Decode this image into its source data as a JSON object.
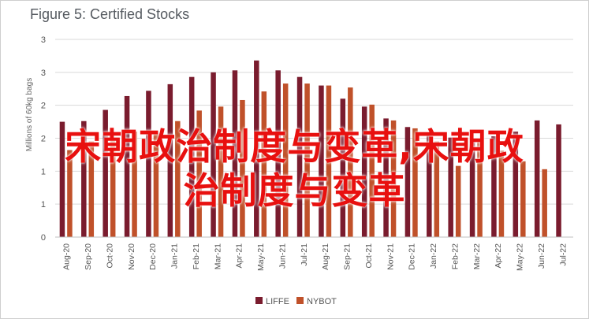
{
  "chart_data": {
    "type": "bar",
    "title": "Figure 5: Certified Stocks",
    "ylabel": "Millions of 60kg bags",
    "xlabel": "",
    "ylim": [
      0,
      3
    ],
    "y_tick_labels": [
      "0",
      "1",
      "1",
      "2",
      "2",
      "3",
      "3"
    ],
    "y_tick_values": [
      0,
      0.5,
      1,
      1.5,
      2,
      2.5,
      3
    ],
    "grid": true,
    "legend_position": "bottom",
    "categories": [
      "Aug-20",
      "Sep-20",
      "Oct-20",
      "Nov-20",
      "Dec-20",
      "Jan-21",
      "Feb-21",
      "Mar-21",
      "Apr-21",
      "May-21",
      "Jun-21",
      "Jul-21",
      "Aug-21",
      "Sep-21",
      "Oct-21",
      "Nov-21",
      "Dec-21",
      "Jan-22",
      "Feb-22",
      "Mar-22",
      "Apr-22",
      "May-22",
      "Jun-22",
      "Jul-22"
    ],
    "series": [
      {
        "name": "LIFFE",
        "color": "#7a1c2e",
        "values": [
          1.75,
          1.76,
          1.93,
          2.14,
          2.22,
          2.32,
          2.43,
          2.5,
          2.53,
          2.68,
          2.53,
          2.43,
          2.3,
          2.1,
          1.98,
          1.8,
          1.67,
          1.58,
          1.51,
          1.49,
          1.53,
          1.6,
          1.77,
          1.71
        ]
      },
      {
        "name": "NYBOT",
        "color": "#c0512a",
        "values": [
          1.32,
          1.45,
          1.47,
          1.6,
          1.57,
          1.76,
          1.92,
          1.98,
          2.08,
          2.21,
          2.33,
          2.33,
          2.3,
          2.27,
          2.01,
          1.77,
          1.65,
          1.45,
          1.08,
          1.45,
          1.31,
          1.15,
          1.03,
          null
        ]
      }
    ]
  },
  "overlay": {
    "line1": "宋朝政治制度与变革,宋朝政",
    "line2": "治制度与变革"
  }
}
